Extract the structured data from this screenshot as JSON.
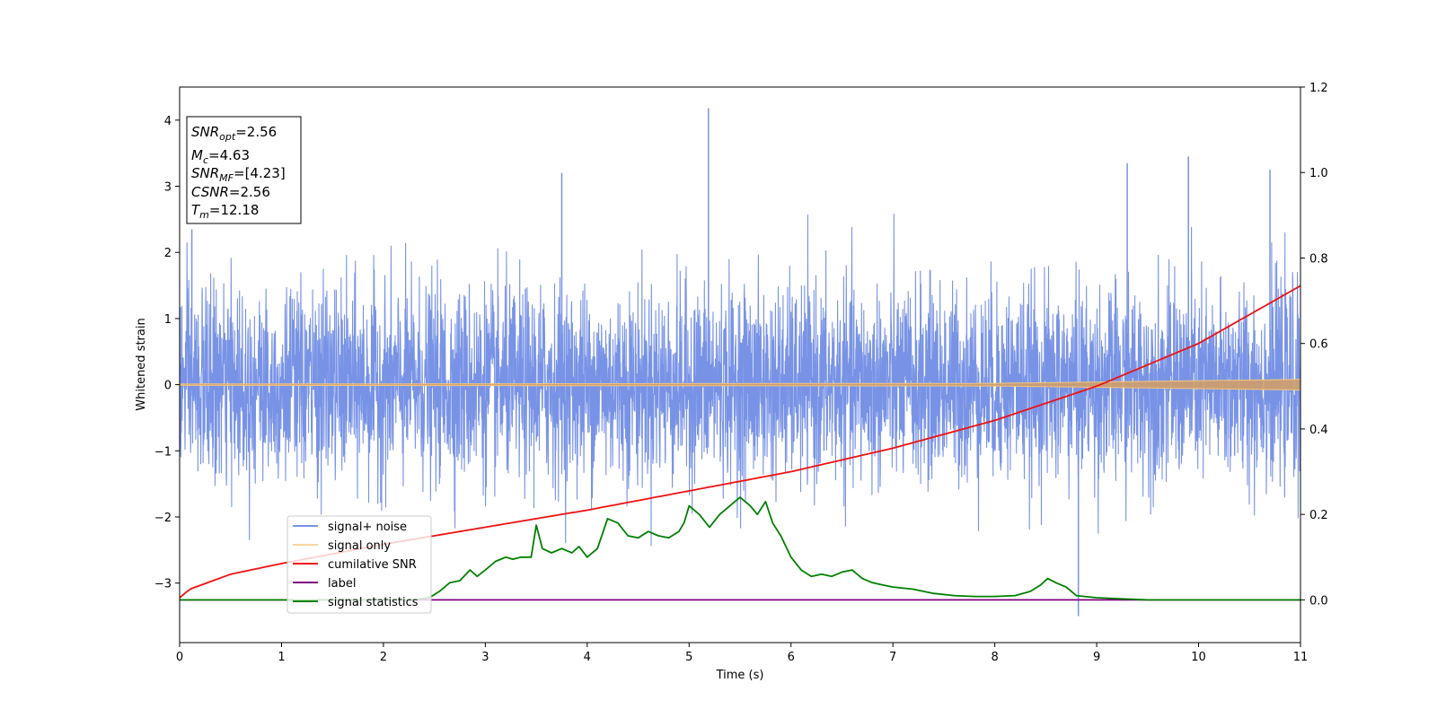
{
  "chart_data": {
    "type": "line",
    "xlabel": "Time (s)",
    "ylabel": "Whitened strain",
    "xlim": [
      0,
      11
    ],
    "ylim": [
      -3.9,
      4.5
    ],
    "ylim_right": [
      -0.1,
      1.2
    ],
    "x_ticks": [
      "0",
      "1",
      "2",
      "3",
      "4",
      "5",
      "6",
      "7",
      "8",
      "9",
      "10",
      "11"
    ],
    "y_ticks": [
      "4",
      "3",
      "2",
      "1",
      "0",
      "−1",
      "−2",
      "−3"
    ],
    "y_ticks_right": [
      "1.2",
      "1.0",
      "0.8",
      "0.6",
      "0.4",
      "0.2",
      "0.0"
    ],
    "grid": false,
    "legend_position": "lower-left",
    "info_box": {
      "snr_opt": {
        "var": "SNR",
        "sub": "opt",
        "value": "=2.56"
      },
      "mc": {
        "var": "M",
        "sub": "c",
        "value": "=4.63"
      },
      "snr_mf": {
        "var": "SNR",
        "sub": "MF",
        "value": "=[4.23]"
      },
      "csnr": {
        "var": "CSNR",
        "sub": "",
        "value": "=2.56"
      },
      "tm": {
        "var": "T",
        "sub": "m",
        "value": "=12.18"
      }
    },
    "series": [
      {
        "name": "signal+ noise",
        "color": "#7893e6",
        "axis": "left",
        "description_values": "noise band ~N(0,1) centered at 0, typical extent ±1.8, peaks to 4.2 near t=5.2 and -3.5 near t=8.8"
      },
      {
        "name": "signal only",
        "color": "#f5c57a",
        "axis": "left",
        "x": [
          0,
          8,
          9,
          10,
          11
        ],
        "amplitude": [
          0.01,
          0.02,
          0.04,
          0.06,
          0.08
        ]
      },
      {
        "name": "cumilative SNR",
        "color": "#ee1111",
        "axis": "right",
        "x": [
          0,
          0.1,
          0.5,
          1,
          2,
          3,
          4,
          5,
          6,
          7,
          8,
          9,
          10,
          11
        ],
        "y": [
          0.005,
          0.025,
          0.06,
          0.085,
          0.13,
          0.17,
          0.21,
          0.255,
          0.3,
          0.355,
          0.42,
          0.5,
          0.6,
          0.735
        ]
      },
      {
        "name": "label",
        "color": "#800080",
        "axis": "right",
        "x": [
          0,
          11
        ],
        "y": [
          0.0,
          0.0
        ]
      },
      {
        "name": "signal statistics",
        "color": "#008000",
        "axis": "right",
        "x": [
          0,
          2.3,
          2.45,
          2.55,
          2.65,
          2.75,
          2.85,
          2.92,
          3.0,
          3.1,
          3.2,
          3.27,
          3.35,
          3.45,
          3.5,
          3.56,
          3.65,
          3.75,
          3.85,
          3.92,
          4.0,
          4.1,
          4.2,
          4.3,
          4.4,
          4.5,
          4.6,
          4.7,
          4.8,
          4.9,
          4.95,
          5.0,
          5.1,
          5.2,
          5.3,
          5.4,
          5.5,
          5.6,
          5.67,
          5.75,
          5.82,
          5.9,
          6.0,
          6.1,
          6.2,
          6.3,
          6.4,
          6.5,
          6.6,
          6.7,
          6.8,
          6.9,
          7.0,
          7.2,
          7.4,
          7.6,
          7.8,
          8.0,
          8.2,
          8.35,
          8.45,
          8.52,
          8.6,
          8.7,
          8.8,
          9.0,
          9.5,
          10.0,
          11.0
        ],
        "y": [
          0.0,
          0.0,
          0.005,
          0.02,
          0.04,
          0.045,
          0.07,
          0.055,
          0.07,
          0.09,
          0.1,
          0.095,
          0.1,
          0.1,
          0.175,
          0.12,
          0.11,
          0.12,
          0.11,
          0.125,
          0.1,
          0.12,
          0.19,
          0.18,
          0.15,
          0.145,
          0.16,
          0.15,
          0.145,
          0.16,
          0.18,
          0.22,
          0.2,
          0.17,
          0.2,
          0.22,
          0.24,
          0.22,
          0.2,
          0.23,
          0.18,
          0.15,
          0.1,
          0.07,
          0.055,
          0.06,
          0.055,
          0.065,
          0.07,
          0.05,
          0.04,
          0.035,
          0.03,
          0.025,
          0.015,
          0.01,
          0.008,
          0.008,
          0.01,
          0.02,
          0.035,
          0.05,
          0.04,
          0.03,
          0.01,
          0.005,
          0.0,
          0.0,
          0.0
        ]
      }
    ]
  }
}
